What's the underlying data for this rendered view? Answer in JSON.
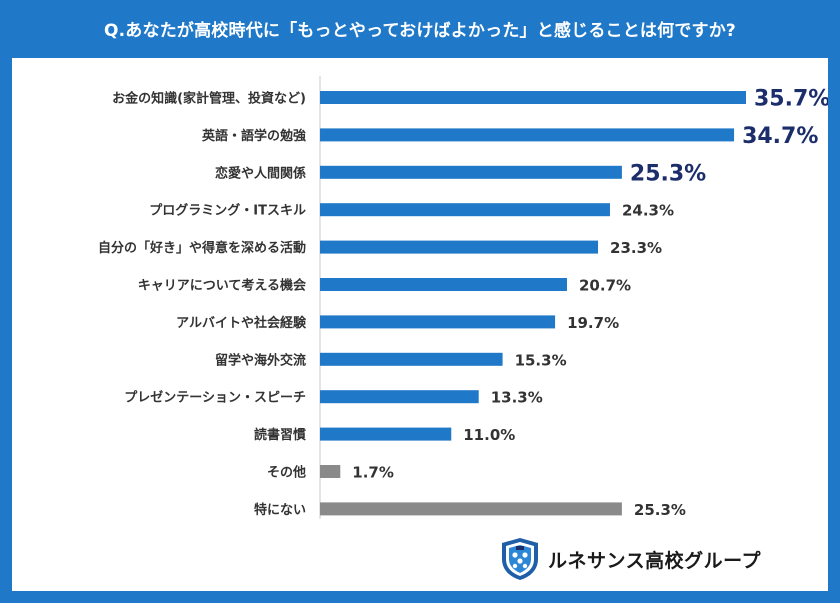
{
  "header": {
    "title": "Q.あなたが高校時代に「もっとやっておけばよかった」と感じることは何ですか?"
  },
  "logo": {
    "text": "ルネサンス高校グループ",
    "icon": "shield-crest-icon"
  },
  "colors": {
    "frame": "#1f78c8",
    "bar_primary": "#1f78c8",
    "bar_secondary": "#8a8a8a",
    "highlight_label": "#1b2d6b",
    "label": "#333333"
  },
  "chart_data": {
    "type": "bar",
    "orientation": "horizontal",
    "categories": [
      "お金の知識(家計管理、投資など)",
      "英語・語学の勉強",
      "恋愛や人間関係",
      "プログラミング・ITスキル",
      "自分の「好き」や得意を深める活動",
      "キャリアについて考える機会",
      "アルバイトや社会経験",
      "留学や海外交流",
      "プレゼンテーション・スピーチ",
      "読書習慣",
      "その他",
      "特にない"
    ],
    "values": [
      35.7,
      34.7,
      25.3,
      24.3,
      23.3,
      20.7,
      19.7,
      15.3,
      13.3,
      11.0,
      1.7,
      25.3
    ],
    "value_labels": [
      "35.7%",
      "34.7%",
      "25.3%",
      "24.3%",
      "23.3%",
      "20.7%",
      "19.7%",
      "15.3%",
      "13.3%",
      "11.0%",
      "1.7%",
      "25.3%"
    ],
    "highlighted": [
      true,
      true,
      true,
      false,
      false,
      false,
      false,
      false,
      false,
      false,
      false,
      false
    ],
    "bar_group": [
      "primary",
      "primary",
      "primary",
      "primary",
      "primary",
      "primary",
      "primary",
      "primary",
      "primary",
      "primary",
      "secondary",
      "secondary"
    ],
    "unit": "%",
    "xlim": [
      0,
      35.7
    ],
    "grid": false,
    "legend": "none"
  }
}
